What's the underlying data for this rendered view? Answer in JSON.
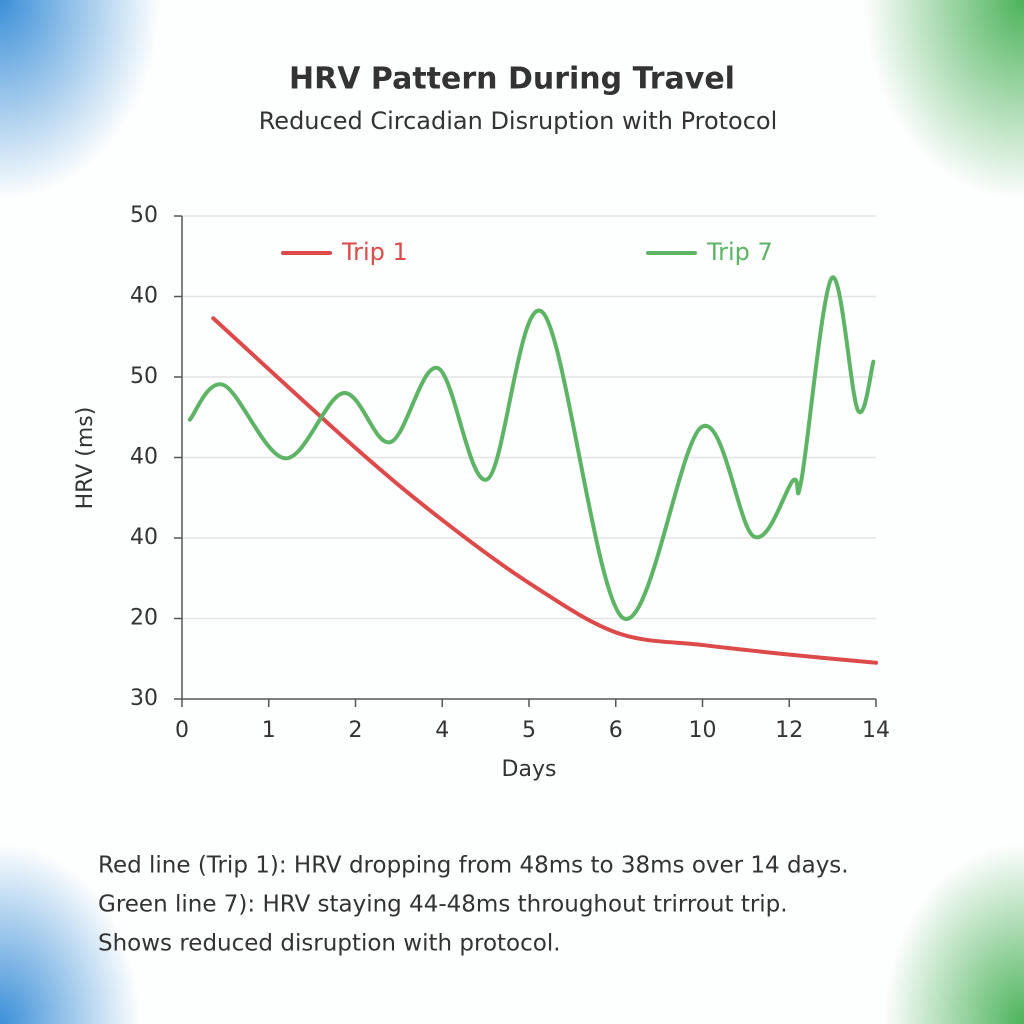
{
  "chart_data": {
    "type": "line",
    "title": "HRV Pattern During Travel",
    "subtitle": "Reduced Circadian Disruption with Protocol",
    "x_label": "Days",
    "y_label": "HRV (ms)",
    "xlim": [
      0,
      8
    ],
    "ylim": [
      0,
      6
    ],
    "xticks": [
      {
        "value": 0,
        "label": "0"
      },
      {
        "value": 1,
        "label": "1"
      },
      {
        "value": 2,
        "label": "2"
      },
      {
        "value": 3,
        "label": "4"
      },
      {
        "value": 4,
        "label": "5"
      },
      {
        "value": 5,
        "label": "6"
      },
      {
        "value": 6,
        "label": "10"
      },
      {
        "value": 7,
        "label": "12"
      },
      {
        "value": 8,
        "label": "14"
      }
    ],
    "yticks": [
      {
        "value": 0,
        "label": "30"
      },
      {
        "value": 1,
        "label": "20"
      },
      {
        "value": 2,
        "label": "40"
      },
      {
        "value": 3,
        "label": "40"
      },
      {
        "value": 4,
        "label": "50"
      },
      {
        "value": 5,
        "label": "40"
      },
      {
        "value": 6,
        "label": "50"
      }
    ],
    "grid": true,
    "series": [
      {
        "name": "Trip 1",
        "color": "#dc4a4a",
        "x": [
          0.36,
          2.03,
          3.04,
          4.03,
          5.02,
          6.01,
          7.02,
          8.0
        ],
        "values": [
          4.73,
          3.09,
          2.19,
          1.42,
          0.82,
          0.67,
          0.55,
          0.45
        ]
      },
      {
        "name": "Trip 7",
        "color": "#5cb464",
        "x": [
          0.09,
          0.48,
          1.19,
          1.86,
          2.4,
          2.95,
          3.52,
          4.16,
          5.08,
          5.99,
          6.59,
          7.04,
          7.14,
          7.49,
          7.79,
          7.97
        ],
        "values": [
          3.47,
          3.9,
          2.99,
          3.8,
          3.19,
          4.11,
          2.73,
          4.8,
          1.01,
          3.38,
          2.02,
          2.71,
          2.72,
          5.23,
          3.59,
          4.19
        ]
      }
    ],
    "notes": [
      "Red line (Trip 1): HRV dropping from 48ms to 38ms over 14 days.",
      "Green line 7): HRV staying 44-48ms throughout trirrout trip.",
      "Shows reduced disruption with protocol."
    ]
  }
}
